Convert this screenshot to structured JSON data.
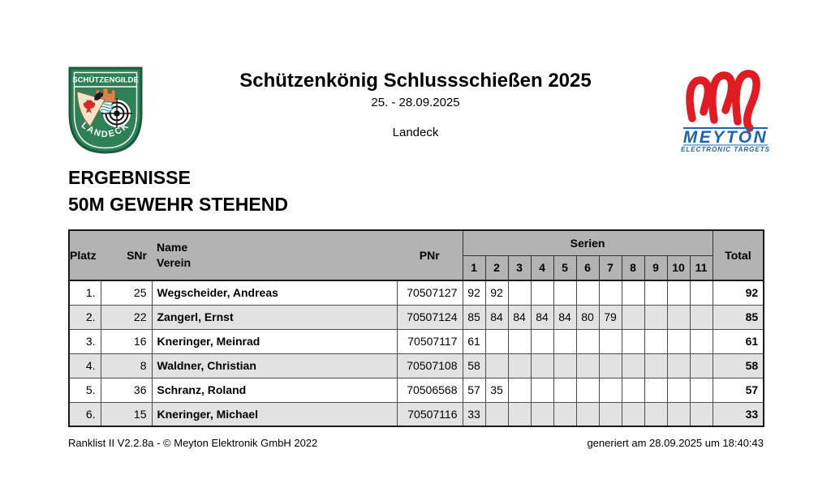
{
  "page": {
    "title": "Schützenkönig Schlussschießen 2025",
    "date_range": "25. - 28.09.2025",
    "location": "Landeck",
    "results_line1": "ERGEBNISSE",
    "results_line2": "50M GEWEHR STEHEND"
  },
  "logos": {
    "crest": {
      "text_top": "SCHÜTZENGILDE",
      "text_bottom": "LANDECK",
      "green": "#2e8056",
      "dark_green": "#1a5c39",
      "tan": "#d6854c",
      "red": "#d22d26"
    },
    "meyton": {
      "brand": "MEYTON",
      "tagline": "ELECTRONIC TARGETS",
      "red": "#e01b22",
      "blue": "#1c63b0"
    }
  },
  "table": {
    "headers": {
      "platz": "Platz",
      "snr": "SNr",
      "name": "Name",
      "verein": "Verein",
      "pnr": "PNr",
      "serien": "Serien",
      "serien_cols": [
        "1",
        "2",
        "3",
        "4",
        "5",
        "6",
        "7",
        "8",
        "9",
        "10",
        "11"
      ],
      "total": "Total"
    },
    "colors": {
      "header_bg": "#b3b3b3",
      "row_alt_bg": "#e2e2e2",
      "row_bg": "#ffffff"
    },
    "rows": [
      {
        "platz": "1.",
        "snr": "25",
        "name": "Wegscheider, Andreas",
        "pnr": "70507127",
        "serien": [
          "92",
          "92",
          "",
          "",
          "",
          "",
          "",
          "",
          "",
          "",
          ""
        ],
        "total": "92"
      },
      {
        "platz": "2.",
        "snr": "22",
        "name": "Zangerl, Ernst",
        "pnr": "70507124",
        "serien": [
          "85",
          "84",
          "84",
          "84",
          "84",
          "80",
          "79",
          "",
          "",
          "",
          ""
        ],
        "total": "85"
      },
      {
        "platz": "3.",
        "snr": "16",
        "name": "Kneringer, Meinrad",
        "pnr": "70507117",
        "serien": [
          "61",
          "",
          "",
          "",
          "",
          "",
          "",
          "",
          "",
          "",
          ""
        ],
        "total": "61"
      },
      {
        "platz": "4.",
        "snr": "8",
        "name": "Waldner, Christian",
        "pnr": "70507108",
        "serien": [
          "58",
          "",
          "",
          "",
          "",
          "",
          "",
          "",
          "",
          "",
          ""
        ],
        "total": "58"
      },
      {
        "platz": "5.",
        "snr": "36",
        "name": "Schranz, Roland",
        "pnr": "70506568",
        "serien": [
          "57",
          "35",
          "",
          "",
          "",
          "",
          "",
          "",
          "",
          "",
          ""
        ],
        "total": "57"
      },
      {
        "platz": "6.",
        "snr": "15",
        "name": "Kneringer, Michael",
        "pnr": "70507116",
        "serien": [
          "33",
          "",
          "",
          "",
          "",
          "",
          "",
          "",
          "",
          "",
          ""
        ],
        "total": "33"
      }
    ]
  },
  "footer": {
    "left": "Ranklist II V2.2.8a - © Meyton Elektronik GmbH 2022",
    "right": "generiert am 28.09.2025 um 18:40:43"
  }
}
